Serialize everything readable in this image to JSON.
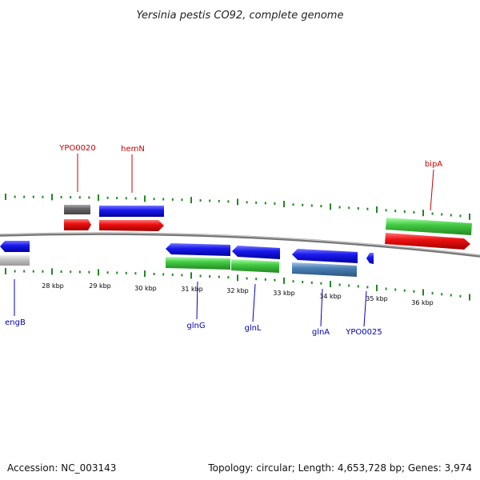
{
  "title": "Yersinia pestis CO92, complete genome",
  "footer": {
    "accession": "Accession: NC_003143",
    "summary": "Topology: circular; Length: 4,653,728 bp; Genes: 3,974"
  },
  "scale_labels": [
    "28 kbp",
    "29 kbp",
    "30 kbp",
    "31 kbp",
    "32 kbp",
    "33 kbp",
    "34 kbp",
    "35 kbp",
    "36 kbp"
  ],
  "gene_labels_top": [
    {
      "text": "YPO0020",
      "color": "#cc0000"
    },
    {
      "text": "hemN",
      "color": "#cc0000"
    },
    {
      "text": "bipA",
      "color": "#cc0000"
    }
  ],
  "gene_labels_bottom": [
    {
      "text": "engB",
      "color": "#0000bb"
    },
    {
      "text": "glnG",
      "color": "#0000bb"
    },
    {
      "text": "glnL",
      "color": "#0000bb"
    },
    {
      "text": "glnA",
      "color": "#0000bb"
    },
    {
      "text": "YPO0025",
      "color": "#0000bb"
    }
  ],
  "colors": {
    "forward_cds": "#1a1aee",
    "reverse_cds": "#1a1aee",
    "gene_red": "#ee1111",
    "gene_green": "#44cc44",
    "gene_gray": "#666666",
    "gene_steelblue": "#4a7fb5",
    "backbone": "#888888",
    "ticks": "#228822"
  }
}
